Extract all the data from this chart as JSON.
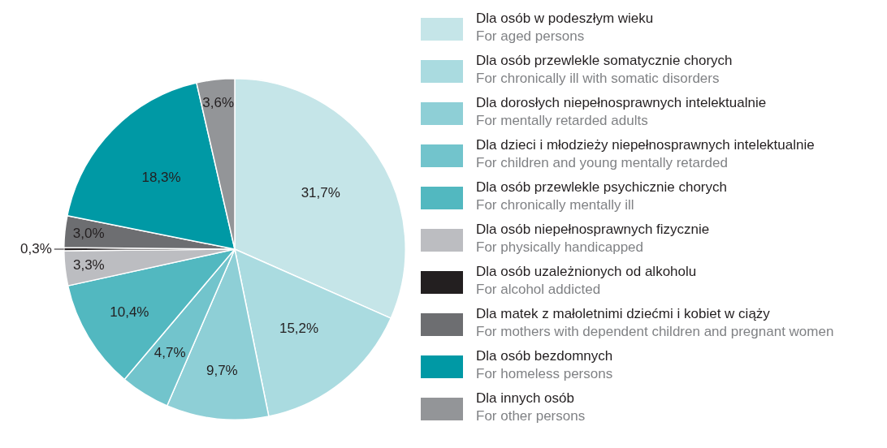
{
  "chart_data": {
    "type": "pie",
    "categories": [
      "Dla osób w podeszłym wieku\nFor aged persons",
      "Dla osób przewlekle somatycznie chorych\nFor chronically ill with somatic disorders",
      "Dla dorosłych niepełnosprawnych intelektualnie\nFor mentally retarded adults",
      "Dla dzieci i młodzieży niepełnosprawnych intelektualnie\nFor children and young mentally retarded",
      "Dla osób przewlekle psychicznie chorych\nFor chronically mentally ill",
      "Dla osób niepełnosprawnych fizycznie\nFor physically handicapped",
      "Dla osób uzależnionych od alkoholu\nFor alcohol addicted",
      "Dla matek z małoletnimi dziećmi i kobiet w ciąży\nFor mothers with dependent children and pregnant women",
      "Dla osób bezdomnych\nFor homeless persons",
      "Dla innych osób\nFor other persons"
    ],
    "values": [
      31.7,
      15.2,
      9.7,
      4.7,
      10.4,
      3.3,
      0.3,
      3.0,
      18.3,
      3.6
    ],
    "value_labels": [
      "31,7%",
      "15,2%",
      "9,7%",
      "4,7%",
      "10,4%",
      "3,3%",
      "0,3%",
      "3,0%",
      "18,3%",
      "3,6%"
    ],
    "colors": [
      "#c5e5e8",
      "#aadbe0",
      "#8ecfd6",
      "#72c4cc",
      "#52b8c0",
      "#bcbdc1",
      "#231f20",
      "#6d6e71",
      "#0099a5",
      "#939598"
    ],
    "legend": "right"
  }
}
